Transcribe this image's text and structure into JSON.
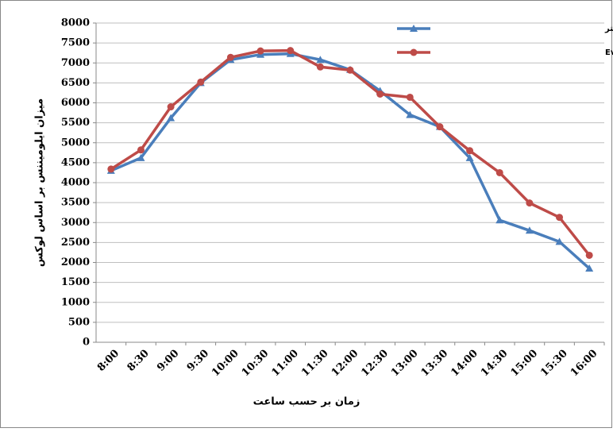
{
  "chart_data": {
    "type": "line",
    "x_label": "زمان بر حسب ساعت",
    "y_label": "میزان ایلومیننس بر اساس لوکس",
    "categories": [
      "8:00",
      "8:30",
      "9:00",
      "9:30",
      "10:00",
      "10:30",
      "11:00",
      "11:30",
      "12:00",
      "12:30",
      "13:00",
      "13:30",
      "14:00",
      "14:30",
      "15:00",
      "15:30",
      "16:00"
    ],
    "series": [
      {
        "name": "میزان ایلومیننس اندازه گیری شده توسط لوکس متر",
        "color": "#4a7ebb",
        "marker": "triangle",
        "values": [
          4300,
          4620,
          5620,
          6500,
          7080,
          7210,
          7230,
          7080,
          6830,
          6300,
          5700,
          5400,
          4620,
          3060,
          2800,
          2520,
          1850
        ]
      },
      {
        "name": "میزان ایلومیننس سنجیده شده توسط Evalglare",
        "color": "#be4b48",
        "marker": "circle",
        "values": [
          4340,
          4820,
          5900,
          6520,
          7140,
          7300,
          7310,
          6900,
          6820,
          6220,
          6140,
          5400,
          4800,
          4250,
          3490,
          3130,
          2180
        ]
      }
    ],
    "ylim": [
      0,
      8000
    ],
    "yticks": [
      0,
      500,
      1000,
      1500,
      2000,
      2500,
      3000,
      3500,
      4000,
      4500,
      5000,
      5500,
      6000,
      6500,
      7000,
      7500,
      8000
    ],
    "grid": true,
    "legend": "top-right"
  }
}
